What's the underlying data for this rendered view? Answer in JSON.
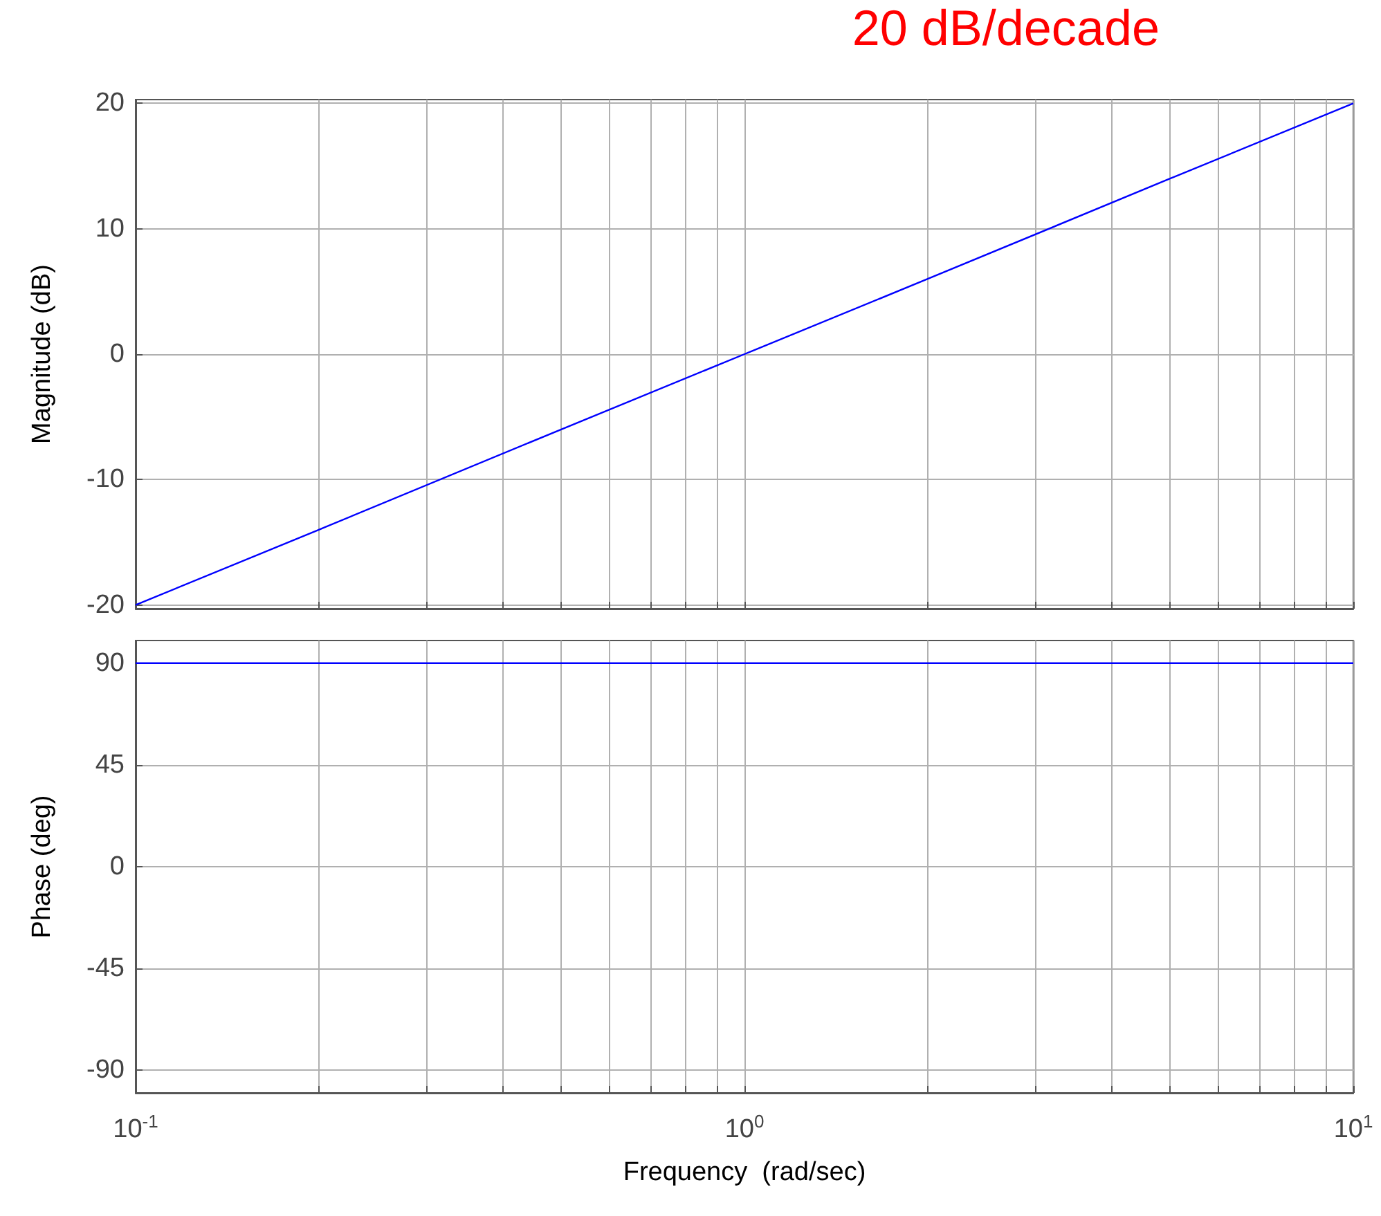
{
  "chart_data": [
    {
      "type": "line",
      "ylabel": "Magnitude (dB)",
      "annotations": [
        "20 dB/decade"
      ],
      "x": [
        0.1,
        0.2,
        0.5,
        1,
        2,
        5,
        10
      ],
      "series": [
        {
          "color": "#0000ff",
          "values": [
            -20,
            -14,
            -6,
            0,
            6,
            14,
            20
          ]
        }
      ],
      "log": "x",
      "xlim": [
        0.1,
        10
      ],
      "xticks": [
        {
          "value": 0.1,
          "label": null
        },
        {
          "value": 0.2,
          "label": null
        },
        {
          "value": 0.3,
          "label": null
        },
        {
          "value": 0.4,
          "label": null
        },
        {
          "value": 0.5,
          "label": null
        },
        {
          "value": 0.6,
          "label": null
        },
        {
          "value": 0.7,
          "label": null
        },
        {
          "value": 0.8,
          "label": null
        },
        {
          "value": 0.9,
          "label": null
        },
        {
          "value": 1,
          "label": null
        },
        {
          "value": 2,
          "label": null
        },
        {
          "value": 3,
          "label": null
        },
        {
          "value": 4,
          "label": null
        },
        {
          "value": 5,
          "label": null
        },
        {
          "value": 6,
          "label": null
        },
        {
          "value": 7,
          "label": null
        },
        {
          "value": 8,
          "label": null
        },
        {
          "value": 9,
          "label": null
        },
        {
          "value": 10,
          "label": null
        }
      ],
      "ylim": [
        -20.3,
        20.3
      ],
      "yticks": [
        -20,
        -10,
        0,
        10,
        20
      ],
      "grid": true,
      "tick_labels": "y",
      "marker": "none"
    },
    {
      "type": "line",
      "xlabel": "Frequency  (rad/sec)",
      "ylabel": "Phase (deg)",
      "x": [
        0.1,
        10
      ],
      "series": [
        {
          "color": "#0000ff",
          "values": [
            90,
            90
          ]
        }
      ],
      "log": "x",
      "xlim": [
        0.1,
        10
      ],
      "xticks": [
        {
          "value": 0.1,
          "label": "10$^{-1}$"
        },
        {
          "value": 0.2,
          "label": null
        },
        {
          "value": 0.3,
          "label": null
        },
        {
          "value": 0.4,
          "label": null
        },
        {
          "value": 0.5,
          "label": null
        },
        {
          "value": 0.6,
          "label": null
        },
        {
          "value": 0.7,
          "label": null
        },
        {
          "value": 0.8,
          "label": null
        },
        {
          "value": 0.9,
          "label": null
        },
        {
          "value": 1,
          "label": "10$^{0}$"
        },
        {
          "value": 2,
          "label": null
        },
        {
          "value": 3,
          "label": null
        },
        {
          "value": 4,
          "label": null
        },
        {
          "value": 5,
          "label": null
        },
        {
          "value": 6,
          "label": null
        },
        {
          "value": 7,
          "label": null
        },
        {
          "value": 8,
          "label": null
        },
        {
          "value": 9,
          "label": null
        },
        {
          "value": 10,
          "label": "10$^{1}$"
        }
      ],
      "ylim": [
        -100,
        100
      ],
      "yticks": [
        -90,
        -45,
        0,
        45,
        90
      ],
      "grid": true,
      "marker": "none"
    }
  ]
}
